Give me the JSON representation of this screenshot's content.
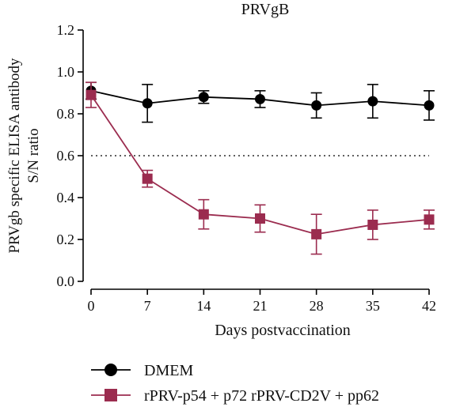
{
  "chart_data": {
    "type": "line",
    "title": "PRVgB",
    "xlabel": "Days postvaccination",
    "ylabel_lines": [
      "PRVgb specific ELISA antibody",
      "S/N  ratio"
    ],
    "x": [
      0,
      7,
      14,
      21,
      28,
      35,
      42
    ],
    "xticks": [
      "0",
      "7",
      "14",
      "21",
      "28",
      "35",
      "42"
    ],
    "yticks": [
      "0.0",
      "0.2",
      "0.4",
      "0.6",
      "0.8",
      "1.0",
      "1.2"
    ],
    "ylim": [
      0,
      1.2
    ],
    "grid": false,
    "legend_position": "bottom",
    "threshold": 0.6,
    "series": [
      {
        "name": "DMEM",
        "marker": "circle",
        "color": "#000000",
        "values": [
          0.91,
          0.85,
          0.88,
          0.87,
          0.84,
          0.86,
          0.84
        ],
        "errors": [
          0.04,
          0.09,
          0.03,
          0.04,
          0.06,
          0.08,
          0.07
        ]
      },
      {
        "name": "rPRV-p54 + p72 rPRV-CD2V + pp62",
        "marker": "square",
        "color": "#9b2c4f",
        "values": [
          0.89,
          0.49,
          0.32,
          0.3,
          0.225,
          0.27,
          0.295
        ],
        "errors": [
          0.06,
          0.04,
          0.07,
          0.065,
          0.095,
          0.07,
          0.045
        ]
      }
    ]
  }
}
